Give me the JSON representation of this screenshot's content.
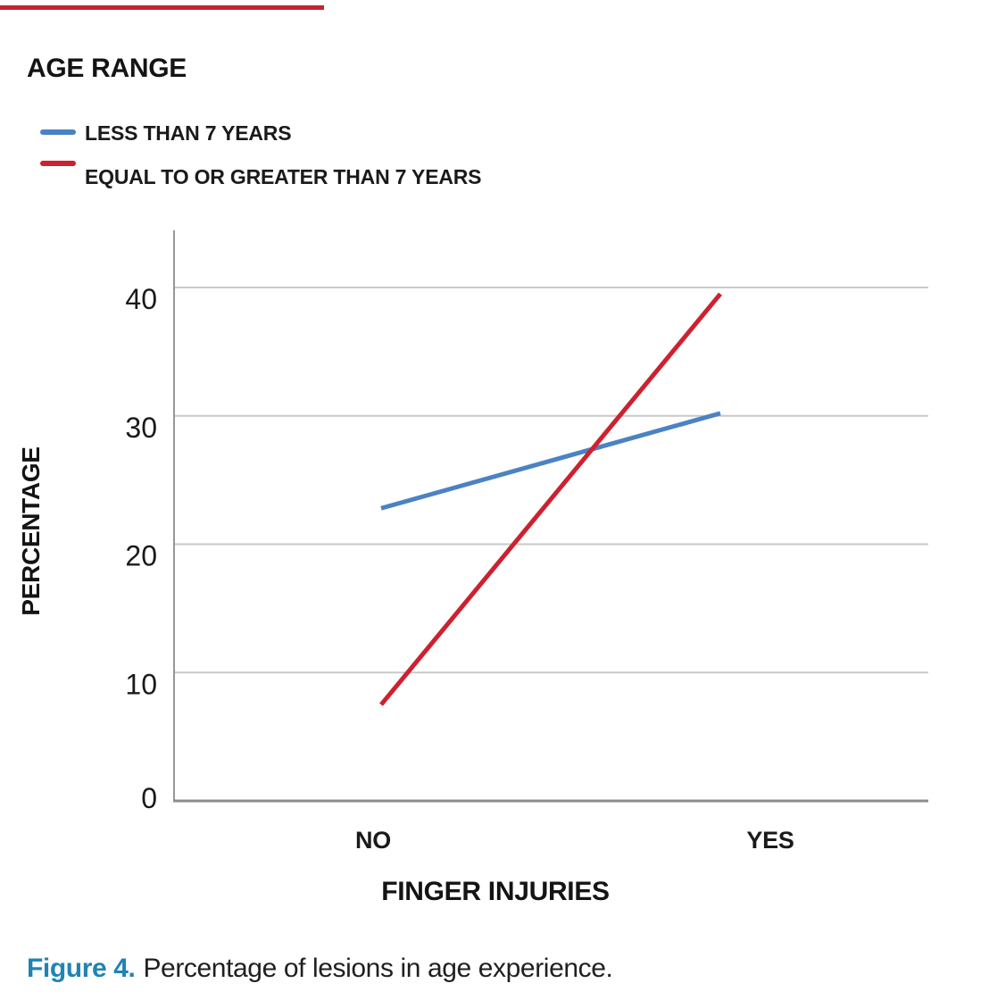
{
  "page": {
    "top_accent_color": "#c52330"
  },
  "legend": {
    "title": "AGE RANGE"
  },
  "caption": {
    "label": "Figure 4.",
    "text": "Percentage of lesions in age experience.",
    "label_color": "#1f84b4"
  },
  "chart_data": {
    "type": "line",
    "categories": [
      "NO",
      "YES"
    ],
    "series": [
      {
        "name": "LESS THAN 7 YEARS",
        "color": "#4a82c4",
        "values": [
          22.8,
          30.2
        ]
      },
      {
        "name": "EQUAL TO OR GREATER THAN 7 YEARS",
        "color": "#cd2130",
        "values": [
          7.5,
          39.5
        ]
      }
    ],
    "xlabel": "FINGER INJURIES",
    "ylabel": "PERCENTAGE",
    "yticks": [
      0,
      10,
      20,
      30,
      40
    ],
    "ylim": [
      0,
      44.5
    ],
    "grid": "horizontal",
    "grid_color": "#c9c9c9",
    "axis_color": "#979797",
    "legend_title": "AGE RANGE",
    "legend_position": "top-left"
  }
}
